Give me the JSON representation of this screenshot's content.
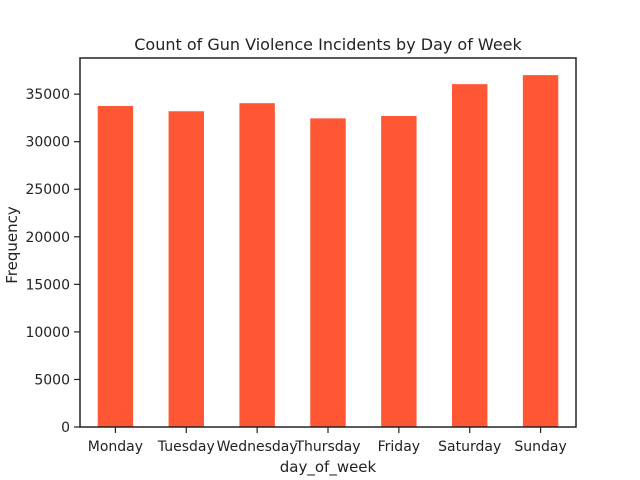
{
  "chart_data": {
    "type": "bar",
    "title": "Count of Gun Violence Incidents by Day of Week",
    "xlabel": "day_of_week",
    "ylabel": "Frequency",
    "categories": [
      "Monday",
      "Tuesday",
      "Wednesday",
      "Thursday",
      "Friday",
      "Saturday",
      "Sunday"
    ],
    "values": [
      33750,
      33200,
      34050,
      32450,
      32700,
      36050,
      37000
    ],
    "ylim": [
      0,
      38800
    ],
    "yticks": [
      0,
      5000,
      10000,
      15000,
      20000,
      25000,
      30000,
      35000
    ],
    "ytick_labels": [
      "0",
      "5000",
      "10000",
      "15000",
      "20000",
      "25000",
      "30000",
      "35000"
    ],
    "grid": false,
    "bar_color": "#ff5733",
    "axis_color": "#222222"
  }
}
